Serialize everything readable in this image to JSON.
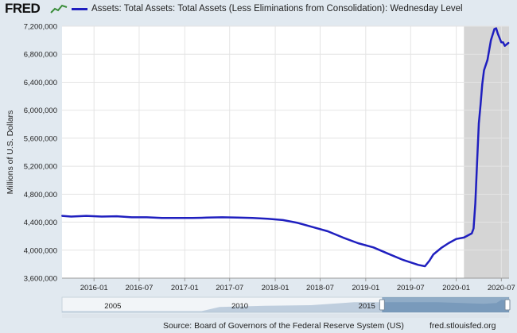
{
  "header": {
    "logo": "FRED",
    "legend_label": "Assets: Total Assets: Total Assets (Less Eliminations from Consolidation): Wednesday Level",
    "legend_color": "#1f1fbf"
  },
  "footer": {
    "source": "Source: Board of Governors of the Federal Reserve System (US)",
    "site": "fred.stlouisfed.org"
  },
  "navigator": {
    "labels": [
      {
        "text": "2005",
        "year": 2005
      },
      {
        "text": "2010",
        "year": 2010
      },
      {
        "text": "2015",
        "year": 2015
      }
    ],
    "range_start": 2015.6,
    "range_end": 2020.6,
    "data_start": 2003,
    "data_end": 2020.6
  },
  "chart_data": {
    "type": "line",
    "ylabel": "Millions of U.S. Dollars",
    "ylim": [
      3600000,
      7200000
    ],
    "xlim": [
      "2015-08-25",
      "2020-08-01"
    ],
    "yticks": [
      3600000,
      4000000,
      4400000,
      4800000,
      5200000,
      5600000,
      6000000,
      6400000,
      6800000,
      7200000
    ],
    "ytick_labels": [
      "3,600,000",
      "4,000,000",
      "4,400,000",
      "4,800,000",
      "5,200,000",
      "5,600,000",
      "6,000,000",
      "6,400,000",
      "6,800,000",
      "7,200,000"
    ],
    "xticks": [
      "2016-01-01",
      "2016-07-01",
      "2017-01-01",
      "2017-07-01",
      "2018-01-01",
      "2018-07-01",
      "2019-01-01",
      "2019-07-01",
      "2020-01-01",
      "2020-07-01"
    ],
    "xtick_labels": [
      "2016-01",
      "2016-07",
      "2017-01",
      "2017-07",
      "2018-01",
      "2018-07",
      "2019-01",
      "2019-07",
      "2020-01",
      "2020-07"
    ],
    "recession": {
      "start": "2020-02-01",
      "end": "2020-08-01",
      "color": "#d5d5d5"
    },
    "grid": true,
    "series": [
      {
        "color": "#1f1fbf",
        "points": [
          [
            "2015-08-26",
            4490000
          ],
          [
            "2015-10-01",
            4480000
          ],
          [
            "2015-12-01",
            4490000
          ],
          [
            "2016-02-01",
            4480000
          ],
          [
            "2016-04-01",
            4485000
          ],
          [
            "2016-06-01",
            4470000
          ],
          [
            "2016-08-01",
            4470000
          ],
          [
            "2016-10-01",
            4460000
          ],
          [
            "2016-12-01",
            4460000
          ],
          [
            "2017-02-01",
            4460000
          ],
          [
            "2017-04-01",
            4465000
          ],
          [
            "2017-06-01",
            4470000
          ],
          [
            "2017-08-01",
            4465000
          ],
          [
            "2017-10-01",
            4460000
          ],
          [
            "2017-12-01",
            4450000
          ],
          [
            "2018-02-01",
            4430000
          ],
          [
            "2018-04-01",
            4390000
          ],
          [
            "2018-06-01",
            4330000
          ],
          [
            "2018-08-01",
            4270000
          ],
          [
            "2018-10-01",
            4180000
          ],
          [
            "2018-12-01",
            4100000
          ],
          [
            "2019-02-01",
            4040000
          ],
          [
            "2019-04-01",
            3950000
          ],
          [
            "2019-06-01",
            3860000
          ],
          [
            "2019-08-01",
            3790000
          ],
          [
            "2019-08-28",
            3770000
          ],
          [
            "2019-09-15",
            3850000
          ],
          [
            "2019-10-01",
            3940000
          ],
          [
            "2019-11-01",
            4030000
          ],
          [
            "2019-12-01",
            4100000
          ],
          [
            "2020-01-01",
            4160000
          ],
          [
            "2020-02-01",
            4180000
          ],
          [
            "2020-03-04",
            4240000
          ],
          [
            "2020-03-11",
            4310000
          ],
          [
            "2020-03-18",
            4670000
          ],
          [
            "2020-03-25",
            5250000
          ],
          [
            "2020-04-01",
            5810000
          ],
          [
            "2020-04-08",
            6080000
          ],
          [
            "2020-04-15",
            6370000
          ],
          [
            "2020-04-22",
            6570000
          ],
          [
            "2020-05-06",
            6720000
          ],
          [
            "2020-05-20",
            7000000
          ],
          [
            "2020-06-03",
            7160000
          ],
          [
            "2020-06-10",
            7170000
          ],
          [
            "2020-06-17",
            7090000
          ],
          [
            "2020-07-01",
            6970000
          ],
          [
            "2020-07-08",
            6970000
          ],
          [
            "2020-07-15",
            6920000
          ],
          [
            "2020-07-29",
            6960000
          ]
        ]
      }
    ]
  }
}
